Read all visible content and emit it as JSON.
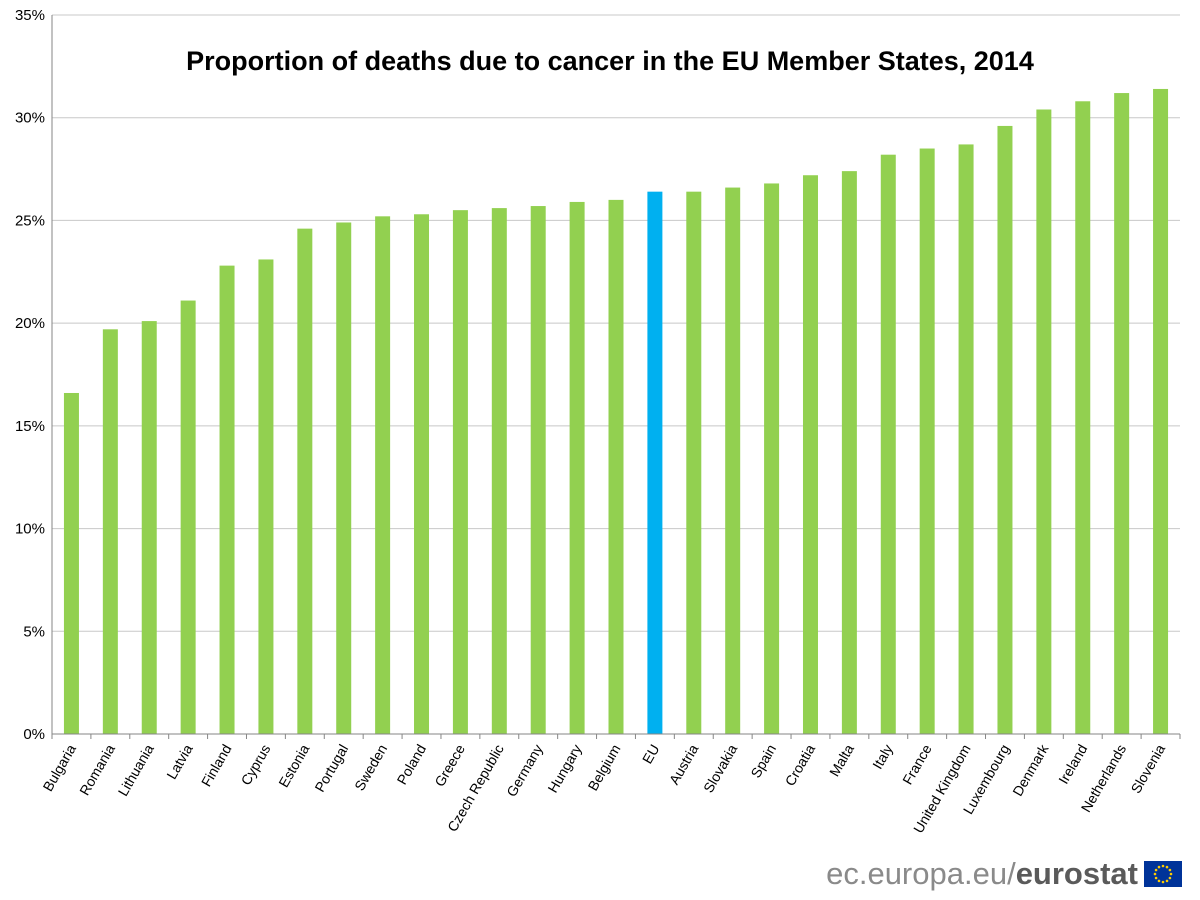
{
  "chart_data": {
    "type": "bar",
    "title": "Proportion of deaths due to cancer in the EU Member States, 2014",
    "xlabel": "",
    "ylabel": "",
    "ylim": [
      0,
      35
    ],
    "yticks": [
      0,
      5,
      10,
      15,
      20,
      25,
      30,
      35
    ],
    "ytick_suffix": "%",
    "grid": true,
    "categories": [
      "Bulgaria",
      "Romania",
      "Lithuania",
      "Latvia",
      "Finland",
      "Cyprus",
      "Estonia",
      "Portugal",
      "Sweden",
      "Poland",
      "Greece",
      "Czech Republic",
      "Germany",
      "Hungary",
      "Belgium",
      "EU",
      "Austria",
      "Slovakia",
      "Spain",
      "Croatia",
      "Malta",
      "Italy",
      "France",
      "United Kingdom",
      "Luxembourg",
      "Denmark",
      "Ireland",
      "Netherlands",
      "Slovenia"
    ],
    "values": [
      16.6,
      19.7,
      20.1,
      21.1,
      22.8,
      23.1,
      24.6,
      24.9,
      25.2,
      25.3,
      25.5,
      25.6,
      25.7,
      25.9,
      26.0,
      26.4,
      26.4,
      26.6,
      26.8,
      27.2,
      27.4,
      28.2,
      28.5,
      28.7,
      29.6,
      30.4,
      30.8,
      31.2,
      31.4
    ],
    "colors": {
      "default": "#92d050",
      "highlight": "#00b0f0",
      "highlight_category": "EU"
    }
  },
  "footer": {
    "site": "ec.europa.eu/",
    "brand": "eurostat",
    "flag_icon": "eu-flag-icon",
    "flag_color": "#003399",
    "star_color": "#ffcc00"
  }
}
